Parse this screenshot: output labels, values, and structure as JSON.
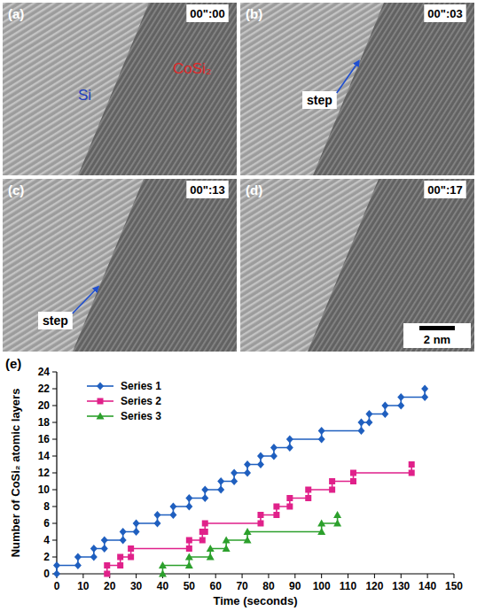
{
  "panels": [
    {
      "letter": "(a)",
      "time": "00\":00",
      "labels": [
        "Si",
        "CoSi₂"
      ]
    },
    {
      "letter": "(b)",
      "time": "00\":03",
      "annotation": "step"
    },
    {
      "letter": "(c)",
      "time": "00\":13",
      "annotation": "step"
    },
    {
      "letter": "(d)",
      "time": "00\":17",
      "scale_bar": "2 nm"
    }
  ],
  "chart_data": {
    "type": "line",
    "panel_label": "(e)",
    "x_label": "Time (seconds)",
    "y_label": "Number of CoSi₂ atomic layers",
    "xlim": [
      0,
      150
    ],
    "xticks": [
      0,
      10,
      20,
      30,
      40,
      50,
      60,
      70,
      80,
      90,
      100,
      110,
      120,
      130,
      140,
      150
    ],
    "ylim": [
      0,
      24
    ],
    "yticks": [
      0,
      2,
      4,
      6,
      8,
      10,
      12,
      14,
      16,
      18,
      20,
      22,
      24
    ],
    "grid": false,
    "legend": "top-left",
    "series": [
      {
        "name": "Series 1",
        "color": "#1f5fbf",
        "marker": "diamond",
        "x": [
          0,
          0,
          8,
          8,
          14,
          14,
          18,
          18,
          25,
          25,
          30,
          30,
          38,
          38,
          44,
          44,
          50,
          50,
          56,
          56,
          62,
          62,
          67,
          67,
          72,
          72,
          77,
          77,
          82,
          82,
          88,
          88,
          100,
          100,
          115,
          115,
          118,
          118,
          124,
          124,
          130,
          130,
          139,
          139
        ],
        "values": [
          0,
          1,
          1,
          2,
          2,
          3,
          3,
          4,
          4,
          5,
          5,
          6,
          6,
          7,
          7,
          8,
          8,
          9,
          9,
          10,
          10,
          11,
          11,
          12,
          12,
          13,
          13,
          14,
          14,
          15,
          15,
          16,
          16,
          17,
          17,
          18,
          18,
          19,
          19,
          20,
          20,
          21,
          21,
          22
        ]
      },
      {
        "name": "Series 2",
        "color": "#e0218a",
        "marker": "square",
        "x": [
          19,
          19,
          24,
          24,
          28,
          28,
          50,
          50,
          55,
          55,
          56,
          56,
          77,
          77,
          83,
          83,
          88,
          88,
          95,
          95,
          104,
          104,
          112,
          112,
          134,
          134
        ],
        "values": [
          0,
          1,
          1,
          2,
          2,
          3,
          3,
          4,
          4,
          5,
          5,
          6,
          6,
          7,
          7,
          8,
          8,
          9,
          9,
          10,
          10,
          11,
          11,
          12,
          12,
          13
        ]
      },
      {
        "name": "Series 3",
        "color": "#2ca02c",
        "marker": "triangle",
        "x": [
          40,
          40,
          50,
          50,
          58,
          58,
          64,
          64,
          72,
          72,
          100,
          100,
          106,
          106
        ],
        "values": [
          0,
          1,
          1,
          2,
          2,
          3,
          3,
          4,
          4,
          5,
          5,
          6,
          6,
          7
        ]
      }
    ]
  }
}
